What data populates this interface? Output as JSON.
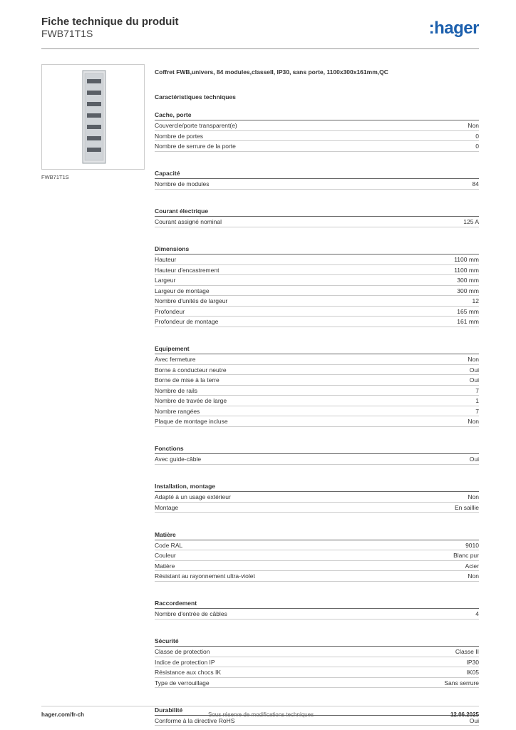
{
  "header": {
    "title": "Fiche technique du produit",
    "subtitle": "FWB71T1S",
    "logo": ":hager"
  },
  "image_caption": "FWB71T1S",
  "description": "Coffret FWB,univers, 84 modules,classeII, IP30, sans porte, 1100x300x161mm,QC",
  "specs_title": "Caractéristiques techniques",
  "sections": [
    {
      "title": "Cache, porte",
      "rows": [
        [
          "Couvercle/porte transparent(e)",
          "Non"
        ],
        [
          "Nombre de portes",
          "0"
        ],
        [
          "Nombre de serrure de la porte",
          "0"
        ]
      ]
    },
    {
      "title": "Capacité",
      "rows": [
        [
          "Nombre de modules",
          "84"
        ]
      ]
    },
    {
      "title": "Courant électrique",
      "rows": [
        [
          "Courant assigné nominal",
          "125 A"
        ]
      ]
    },
    {
      "title": "Dimensions",
      "rows": [
        [
          "Hauteur",
          "1100 mm"
        ],
        [
          "Hauteur d'encastrement",
          "1100 mm"
        ],
        [
          "Largeur",
          "300 mm"
        ],
        [
          "Largeur de montage",
          "300 mm"
        ],
        [
          "Nombre d'unités de largeur",
          "12"
        ],
        [
          "Profondeur",
          "165 mm"
        ],
        [
          "Profondeur de montage",
          "161 mm"
        ]
      ]
    },
    {
      "title": "Equipement",
      "rows": [
        [
          "Avec fermeture",
          "Non"
        ],
        [
          "Borne à conducteur neutre",
          "Oui"
        ],
        [
          "Borne de mise à la terre",
          "Oui"
        ],
        [
          "Nombre de rails",
          "7"
        ],
        [
          "Nombre de travée de large",
          "1"
        ],
        [
          "Nombre rangées",
          "7"
        ],
        [
          "Plaque de montage incluse",
          "Non"
        ]
      ]
    },
    {
      "title": "Fonctions",
      "rows": [
        [
          "Avec guide-câble",
          "Oui"
        ]
      ]
    },
    {
      "title": "Installation, montage",
      "rows": [
        [
          "Adapté à un usage extérieur",
          "Non"
        ],
        [
          "Montage",
          "En saillie"
        ]
      ]
    },
    {
      "title": "Matière",
      "rows": [
        [
          "Code RAL",
          "9010"
        ],
        [
          "Couleur",
          "Blanc pur"
        ],
        [
          "Matière",
          "Acier"
        ],
        [
          "Résistant au rayonnement ultra-violet",
          "Non"
        ]
      ]
    },
    {
      "title": "Raccordement",
      "rows": [
        [
          "Nombre d'entrée de câbles",
          "4"
        ]
      ]
    },
    {
      "title": "Sécurité",
      "rows": [
        [
          "Classe de protection",
          "Classe II"
        ],
        [
          "Indice de protection IP",
          "IP30"
        ],
        [
          "Résistance aux chocs IK",
          "IK05"
        ],
        [
          "Type de verrouillage",
          "Sans serrure"
        ]
      ]
    },
    {
      "title": "Durabilité",
      "rows": [
        [
          "Conforme à la directive RoHS",
          "Oui"
        ]
      ]
    }
  ],
  "footer": {
    "left": "hager.com/fr-ch",
    "center": "Sous réserve de modifications techniques",
    "right": "12.06.2025"
  }
}
